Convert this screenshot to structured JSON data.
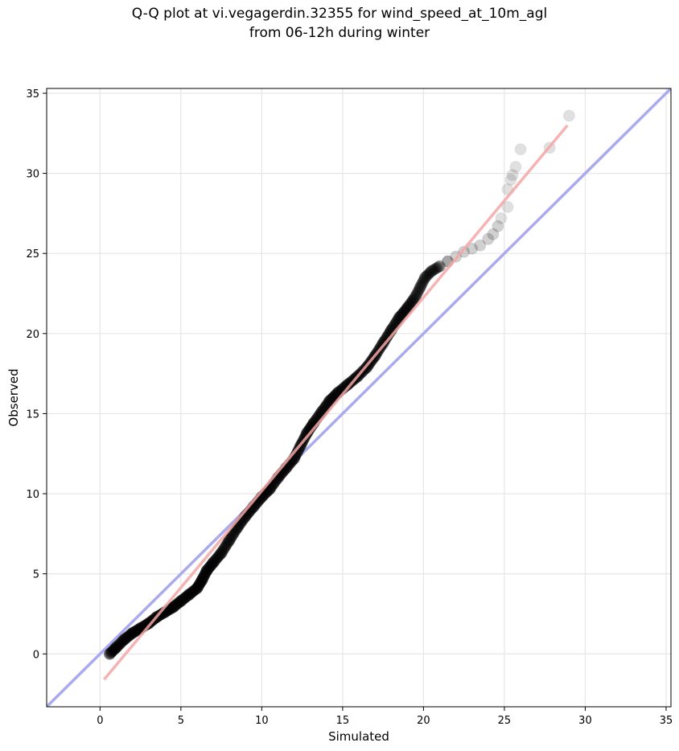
{
  "chart_data": {
    "type": "scatter",
    "title_line1": "Q-Q plot at vi.vegagerdin.32355 for wind_speed_at_10m_agl",
    "title_line2": "from 06-12h during winter",
    "xlabel": "Simulated",
    "ylabel": "Observed",
    "xlim": [
      -3.3,
      35.3
    ],
    "ylim": [
      -3.3,
      35.3
    ],
    "xticks": [
      0,
      5,
      10,
      15,
      20,
      25,
      30,
      35
    ],
    "yticks": [
      0,
      5,
      10,
      15,
      20,
      25,
      30,
      35
    ],
    "grid": true,
    "colors": {
      "points": "#000000",
      "identity_line": "#aaaaee",
      "fit_line": "#f4a6a6"
    },
    "identity_line": {
      "x": [
        -3.3,
        35.3
      ],
      "y": [
        -3.3,
        35.3
      ]
    },
    "fit_line": {
      "x": [
        0.25,
        28.9
      ],
      "y": [
        -1.6,
        33.0
      ]
    },
    "series": [
      {
        "points": [
          [
            0.6,
            0.0
          ],
          [
            1.0,
            0.4
          ],
          [
            1.5,
            0.9
          ],
          [
            2.0,
            1.3
          ],
          [
            2.5,
            1.6
          ],
          [
            3.0,
            1.9
          ],
          [
            3.5,
            2.3
          ],
          [
            4.0,
            2.6
          ],
          [
            4.5,
            2.9
          ],
          [
            5.0,
            3.3
          ],
          [
            5.5,
            3.7
          ],
          [
            6.0,
            4.1
          ],
          [
            6.3,
            4.6
          ],
          [
            6.6,
            5.2
          ],
          [
            7.0,
            5.7
          ],
          [
            7.5,
            6.3
          ],
          [
            8.0,
            7.1
          ],
          [
            8.5,
            7.9
          ],
          [
            9.0,
            8.6
          ],
          [
            9.5,
            9.2
          ],
          [
            10.0,
            9.8
          ],
          [
            10.5,
            10.3
          ],
          [
            11.0,
            11.0
          ],
          [
            11.5,
            11.6
          ],
          [
            12.0,
            12.2
          ],
          [
            12.4,
            13.0
          ],
          [
            12.8,
            13.8
          ],
          [
            13.2,
            14.4
          ],
          [
            13.7,
            15.1
          ],
          [
            14.2,
            15.8
          ],
          [
            14.7,
            16.3
          ],
          [
            15.3,
            16.8
          ],
          [
            15.9,
            17.3
          ],
          [
            16.5,
            17.9
          ],
          [
            17.0,
            18.6
          ],
          [
            17.5,
            19.4
          ],
          [
            18.0,
            20.2
          ],
          [
            18.5,
            21.0
          ],
          [
            19.0,
            21.6
          ],
          [
            19.5,
            22.3
          ],
          [
            19.8,
            22.9
          ],
          [
            20.1,
            23.5
          ],
          [
            20.5,
            23.9
          ],
          [
            21.0,
            24.2
          ],
          [
            21.5,
            24.5
          ],
          [
            22.0,
            24.8
          ],
          [
            22.5,
            25.1
          ],
          [
            23.0,
            25.3
          ],
          [
            23.5,
            25.5
          ],
          [
            24.0,
            25.9
          ],
          [
            24.3,
            26.2
          ],
          [
            24.6,
            26.7
          ],
          [
            24.8,
            27.2
          ],
          [
            25.2,
            27.9
          ],
          [
            25.2,
            29.0
          ],
          [
            25.4,
            29.6
          ],
          [
            25.5,
            29.9
          ],
          [
            25.7,
            30.4
          ],
          [
            26.0,
            31.5
          ],
          [
            27.8,
            31.6
          ],
          [
            29.0,
            33.6
          ]
        ]
      }
    ]
  }
}
